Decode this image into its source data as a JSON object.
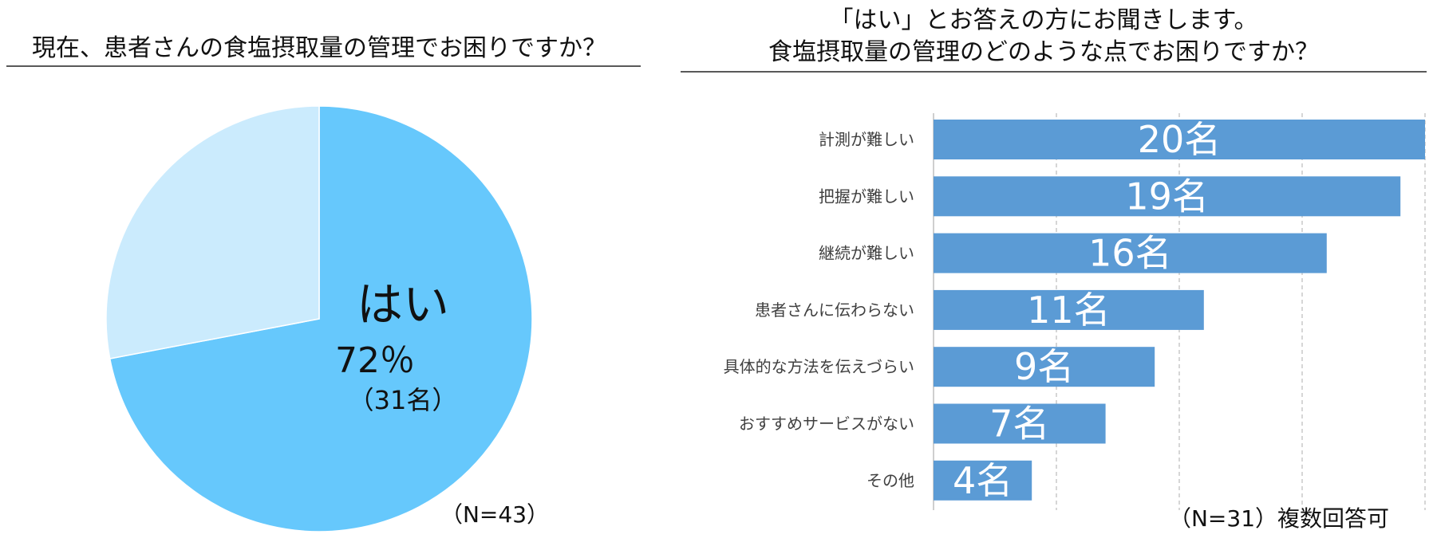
{
  "chart_data": [
    {
      "type": "pie",
      "title": "現在、患者さんの食塩摂取量の管理でお困りですか？",
      "slices": [
        {
          "label": "はい",
          "percent": 72,
          "count_label": "（31名）",
          "percent_label": "72％",
          "color": "#66c8fc"
        },
        {
          "label": "",
          "percent": 28,
          "color": "#cbebfd"
        }
      ],
      "note": "（N=43）"
    },
    {
      "type": "bar",
      "orientation": "horizontal",
      "title": [
        "「はい」とお答えの方にお聞きします。",
        "食塩摂取量の管理のどのような点でお困りですか？"
      ],
      "categories": [
        "計測が難しい",
        "把握が難しい",
        "継続が難しい",
        "患者さんに伝わらない",
        "具体的な方法を伝えづらい",
        "おすすめサービスがない",
        "その他"
      ],
      "values": [
        20,
        19,
        16,
        11,
        9,
        7,
        4
      ],
      "value_labels": [
        "20名",
        "19名",
        "16名",
        "11名",
        "9名",
        "7名",
        "4名"
      ],
      "xlim": [
        0,
        20
      ],
      "gridlines": [
        5,
        10,
        15,
        20
      ],
      "grid": true,
      "color": "#5b9bd5",
      "note": "（N=31）複数回答可"
    }
  ]
}
